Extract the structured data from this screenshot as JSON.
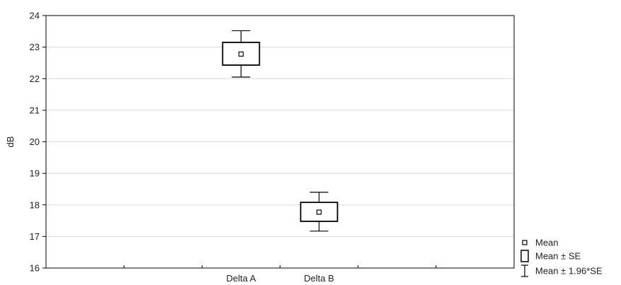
{
  "chart_data": {
    "type": "box",
    "title": "",
    "xlabel": "",
    "ylabel": "dB",
    "ylim": [
      16,
      24
    ],
    "yticks": [
      16,
      17,
      18,
      19,
      20,
      21,
      22,
      23,
      24
    ],
    "categories": [
      "Delta A",
      "Delta B"
    ],
    "grid": true,
    "legend_position": "bottom-right",
    "series": [
      {
        "category": "Delta A",
        "mean": 22.78,
        "se_low": 22.43,
        "se_high": 23.15,
        "ci_low": 22.05,
        "ci_high": 23.52
      },
      {
        "category": "Delta B",
        "mean": 17.77,
        "se_low": 17.48,
        "se_high": 18.08,
        "ci_low": 17.17,
        "ci_high": 18.4
      }
    ],
    "legend": [
      {
        "key": "mean",
        "label": "Mean"
      },
      {
        "key": "se",
        "label": "Mean ± SE"
      },
      {
        "key": "ci",
        "label": "Mean ± 1.96*SE"
      }
    ],
    "colors": {
      "stroke": "#000000",
      "grid": "#d9d9d9",
      "fill": "#ffffff"
    }
  }
}
